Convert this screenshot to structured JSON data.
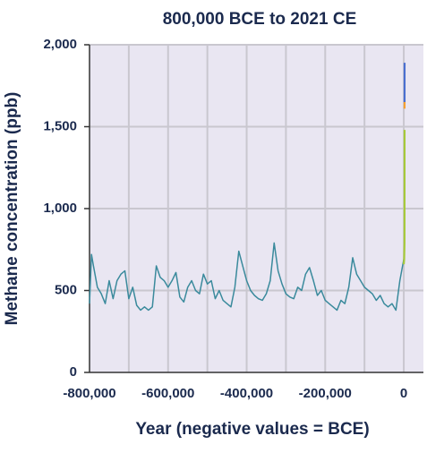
{
  "chart_data": {
    "type": "line",
    "title": "800,000 BCE to 2021 CE",
    "x_label": "Year (negative values = BCE)",
    "y_label": "Methane concentration (ppb)",
    "xlim": [
      -800000,
      50000
    ],
    "ylim": [
      0,
      2000
    ],
    "xticks": [
      {
        "value": -800000,
        "label": "-800,000"
      },
      {
        "value": -600000,
        "label": "-600,000"
      },
      {
        "value": -400000,
        "label": "-400,000"
      },
      {
        "value": -200000,
        "label": "-200,000"
      },
      0
    ],
    "xminor_ticks": [
      -700000,
      -500000,
      -300000,
      -100000
    ],
    "yticks": [
      0,
      {
        "value": 500,
        "label": "500"
      },
      {
        "value": 1000,
        "label": "1,000"
      },
      {
        "value": 1500,
        "label": "1,500"
      },
      {
        "value": 2000,
        "label": "2,000"
      }
    ],
    "grid": true,
    "series": [
      {
        "color": "#3a8a9c",
        "x": [
          -800000,
          -795000,
          -790000,
          -780000,
          -770000,
          -760000,
          -750000,
          -740000,
          -730000,
          -720000,
          -710000,
          -700000,
          -690000,
          -680000,
          -670000,
          -660000,
          -650000,
          -640000,
          -630000,
          -620000,
          -610000,
          -600000,
          -590000,
          -580000,
          -570000,
          -560000,
          -550000,
          -540000,
          -530000,
          -520000,
          -510000,
          -500000,
          -490000,
          -480000,
          -470000,
          -460000,
          -450000,
          -440000,
          -430000,
          -420000,
          -410000,
          -400000,
          -390000,
          -380000,
          -370000,
          -360000,
          -350000,
          -340000,
          -330000,
          -320000,
          -310000,
          -300000,
          -290000,
          -280000,
          -270000,
          -260000,
          -250000,
          -240000,
          -230000,
          -220000,
          -210000,
          -200000,
          -190000,
          -180000,
          -170000,
          -160000,
          -150000,
          -140000,
          -130000,
          -120000,
          -110000,
          -100000,
          -90000,
          -80000,
          -70000,
          -60000,
          -50000,
          -40000,
          -30000,
          -20000,
          -10000,
          0
        ],
        "values": [
          420,
          720,
          650,
          520,
          480,
          420,
          560,
          450,
          560,
          600,
          620,
          450,
          520,
          410,
          380,
          400,
          380,
          400,
          650,
          580,
          560,
          520,
          560,
          610,
          460,
          430,
          520,
          560,
          500,
          480,
          600,
          540,
          560,
          450,
          500,
          440,
          420,
          400,
          520,
          740,
          650,
          560,
          500,
          470,
          450,
          440,
          480,
          560,
          790,
          620,
          540,
          480,
          460,
          450,
          520,
          500,
          600,
          640,
          560,
          470,
          500,
          440,
          420,
          400,
          380,
          440,
          420,
          520,
          700,
          600,
          560,
          520,
          500,
          480,
          440,
          470,
          420,
          400,
          420,
          380,
          560,
          690
        ]
      },
      {
        "color": "#a6c93a",
        "x": [
          0,
          1000,
          1800,
          1900,
          1990
        ],
        "values": [
          660,
          690,
          790,
          1000,
          1480
        ]
      },
      {
        "color": "#f5a030",
        "x": [
          1984,
          2000
        ],
        "values": [
          1610,
          1650
        ]
      },
      {
        "color": "#4a6fd0",
        "x": [
          1983,
          2021
        ],
        "values": [
          1650,
          1890
        ]
      }
    ]
  }
}
